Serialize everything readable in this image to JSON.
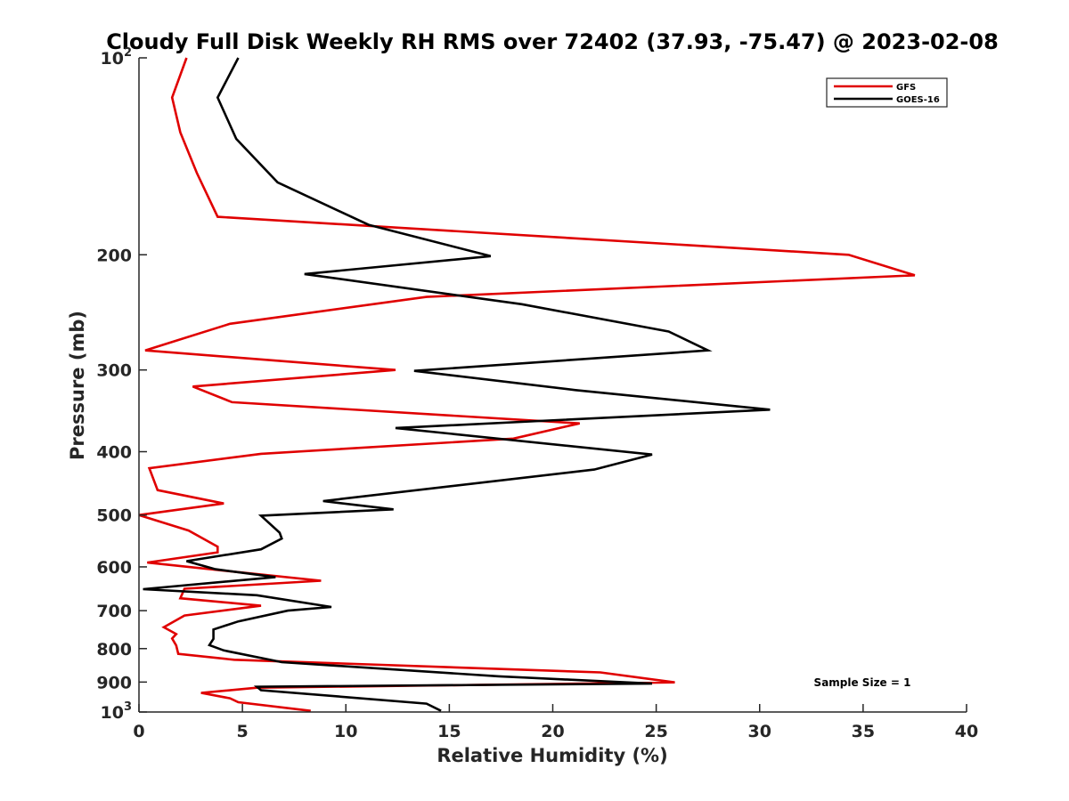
{
  "chart_data": {
    "type": "line",
    "title": "Cloudy Full Disk Weekly RH RMS over 72402 (37.93, -75.47) @ 2023-02-08",
    "xlabel": "Relative Humidity (%)",
    "ylabel": "Pressure (mb)",
    "xlim": [
      0,
      40
    ],
    "ylim": [
      1000,
      100
    ],
    "yscale": "log",
    "y_reversed": true,
    "grid": false,
    "legend_position": "top-right",
    "x_ticks": [
      0,
      5,
      10,
      15,
      20,
      25,
      30,
      35,
      40
    ],
    "y_ticks": [
      {
        "value": 100,
        "label_base": "10",
        "label_exp": "2"
      },
      {
        "value": 200,
        "label_base": "200",
        "label_exp": ""
      },
      {
        "value": 300,
        "label_base": "300",
        "label_exp": ""
      },
      {
        "value": 400,
        "label_base": "400",
        "label_exp": ""
      },
      {
        "value": 500,
        "label_base": "500",
        "label_exp": ""
      },
      {
        "value": 600,
        "label_base": "600",
        "label_exp": ""
      },
      {
        "value": 700,
        "label_base": "700",
        "label_exp": ""
      },
      {
        "value": 800,
        "label_base": "800",
        "label_exp": ""
      },
      {
        "value": 900,
        "label_base": "900",
        "label_exp": ""
      },
      {
        "value": 1000,
        "label_base": "10",
        "label_exp": "3"
      }
    ],
    "annotation": "Sample Size = 1",
    "series": [
      {
        "name": "GFS",
        "color": "#e00000",
        "points": [
          [
            2.3,
            100
          ],
          [
            1.6,
            115
          ],
          [
            2.0,
            130
          ],
          [
            2.8,
            150
          ],
          [
            3.8,
            175
          ],
          [
            34.3,
            200
          ],
          [
            37.5,
            215
          ],
          [
            13.9,
            232
          ],
          [
            4.4,
            255
          ],
          [
            0.3,
            280
          ],
          [
            12.4,
            300
          ],
          [
            2.6,
            318
          ],
          [
            4.5,
            336
          ],
          [
            21.3,
            362
          ],
          [
            18.1,
            382
          ],
          [
            5.9,
            403
          ],
          [
            0.5,
            424
          ],
          [
            0.9,
            458
          ],
          [
            4.1,
            480
          ],
          [
            0.0,
            500
          ],
          [
            2.4,
            528
          ],
          [
            3.8,
            559
          ],
          [
            3.8,
            570
          ],
          [
            0.4,
            591
          ],
          [
            5.4,
            614
          ],
          [
            8.8,
            630
          ],
          [
            2.2,
            648
          ],
          [
            2.0,
            670
          ],
          [
            5.9,
            688
          ],
          [
            2.2,
            712
          ],
          [
            1.2,
            742
          ],
          [
            1.8,
            760
          ],
          [
            1.6,
            772
          ],
          [
            1.8,
            791
          ],
          [
            1.9,
            815
          ],
          [
            4.6,
            832
          ],
          [
            22.3,
            870
          ],
          [
            25.9,
            901
          ],
          [
            5.7,
            918
          ],
          [
            3.0,
            935
          ],
          [
            4.4,
            953
          ],
          [
            4.8,
            966
          ],
          [
            8.3,
            996
          ]
        ]
      },
      {
        "name": "GOES-16",
        "color": "#000000",
        "points": [
          [
            4.8,
            100
          ],
          [
            3.8,
            115
          ],
          [
            4.7,
            133
          ],
          [
            6.7,
            155
          ],
          [
            11.1,
            180
          ],
          [
            17.0,
            201
          ],
          [
            8.0,
            214
          ],
          [
            18.5,
            238
          ],
          [
            25.6,
            262
          ],
          [
            27.5,
            280
          ],
          [
            13.3,
            301
          ],
          [
            21.1,
            322
          ],
          [
            30.5,
            345
          ],
          [
            12.4,
            368
          ],
          [
            24.8,
            404
          ],
          [
            22.0,
            426
          ],
          [
            8.9,
            476
          ],
          [
            12.3,
            490
          ],
          [
            5.9,
            501
          ],
          [
            6.8,
            532
          ],
          [
            6.9,
            543
          ],
          [
            5.9,
            564
          ],
          [
            2.3,
            588
          ],
          [
            3.7,
            605
          ],
          [
            6.6,
            622
          ],
          [
            0.2,
            649
          ],
          [
            5.7,
            663
          ],
          [
            9.3,
            691
          ],
          [
            7.2,
            700
          ],
          [
            4.8,
            727
          ],
          [
            3.6,
            748
          ],
          [
            3.6,
            773
          ],
          [
            3.4,
            790
          ],
          [
            4.1,
            805
          ],
          [
            6.9,
            839
          ],
          [
            17.4,
            882
          ],
          [
            24.8,
            905
          ],
          [
            5.7,
            915
          ],
          [
            5.9,
            926
          ],
          [
            13.9,
            971
          ],
          [
            14.6,
            996
          ]
        ]
      }
    ]
  }
}
